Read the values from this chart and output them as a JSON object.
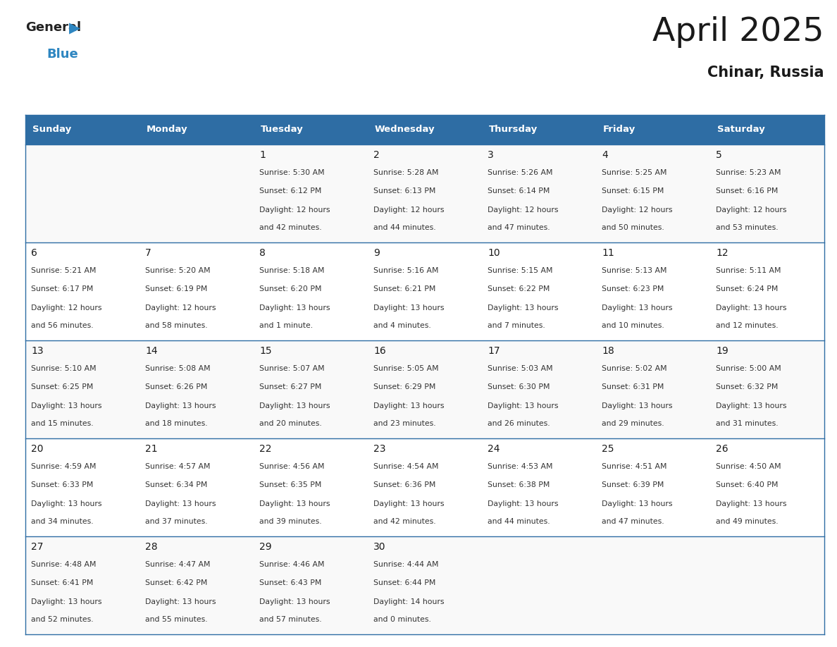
{
  "title": "April 2025",
  "subtitle": "Chinar, Russia",
  "header_bg": "#2E6DA4",
  "header_text_color": "#FFFFFF",
  "border_color": "#2E6DA4",
  "day_names": [
    "Sunday",
    "Monday",
    "Tuesday",
    "Wednesday",
    "Thursday",
    "Friday",
    "Saturday"
  ],
  "title_color": "#1a1a1a",
  "subtitle_color": "#1a1a1a",
  "number_color": "#1a1a1a",
  "text_color": "#333333",
  "logo_general_color": "#222222",
  "logo_blue_color": "#2E86C1",
  "weeks": [
    [
      {
        "day": null,
        "sunrise": null,
        "sunset": null,
        "daylight_h": null,
        "daylight_m": null
      },
      {
        "day": null,
        "sunrise": null,
        "sunset": null,
        "daylight_h": null,
        "daylight_m": null
      },
      {
        "day": 1,
        "sunrise": "5:30 AM",
        "sunset": "6:12 PM",
        "daylight_h": "12 hours",
        "daylight_m": "42 minutes."
      },
      {
        "day": 2,
        "sunrise": "5:28 AM",
        "sunset": "6:13 PM",
        "daylight_h": "12 hours",
        "daylight_m": "44 minutes."
      },
      {
        "day": 3,
        "sunrise": "5:26 AM",
        "sunset": "6:14 PM",
        "daylight_h": "12 hours",
        "daylight_m": "47 minutes."
      },
      {
        "day": 4,
        "sunrise": "5:25 AM",
        "sunset": "6:15 PM",
        "daylight_h": "12 hours",
        "daylight_m": "50 minutes."
      },
      {
        "day": 5,
        "sunrise": "5:23 AM",
        "sunset": "6:16 PM",
        "daylight_h": "12 hours",
        "daylight_m": "53 minutes."
      }
    ],
    [
      {
        "day": 6,
        "sunrise": "5:21 AM",
        "sunset": "6:17 PM",
        "daylight_h": "12 hours",
        "daylight_m": "56 minutes."
      },
      {
        "day": 7,
        "sunrise": "5:20 AM",
        "sunset": "6:19 PM",
        "daylight_h": "12 hours",
        "daylight_m": "58 minutes."
      },
      {
        "day": 8,
        "sunrise": "5:18 AM",
        "sunset": "6:20 PM",
        "daylight_h": "13 hours",
        "daylight_m": "1 minute."
      },
      {
        "day": 9,
        "sunrise": "5:16 AM",
        "sunset": "6:21 PM",
        "daylight_h": "13 hours",
        "daylight_m": "4 minutes."
      },
      {
        "day": 10,
        "sunrise": "5:15 AM",
        "sunset": "6:22 PM",
        "daylight_h": "13 hours",
        "daylight_m": "7 minutes."
      },
      {
        "day": 11,
        "sunrise": "5:13 AM",
        "sunset": "6:23 PM",
        "daylight_h": "13 hours",
        "daylight_m": "10 minutes."
      },
      {
        "day": 12,
        "sunrise": "5:11 AM",
        "sunset": "6:24 PM",
        "daylight_h": "13 hours",
        "daylight_m": "12 minutes."
      }
    ],
    [
      {
        "day": 13,
        "sunrise": "5:10 AM",
        "sunset": "6:25 PM",
        "daylight_h": "13 hours",
        "daylight_m": "15 minutes."
      },
      {
        "day": 14,
        "sunrise": "5:08 AM",
        "sunset": "6:26 PM",
        "daylight_h": "13 hours",
        "daylight_m": "18 minutes."
      },
      {
        "day": 15,
        "sunrise": "5:07 AM",
        "sunset": "6:27 PM",
        "daylight_h": "13 hours",
        "daylight_m": "20 minutes."
      },
      {
        "day": 16,
        "sunrise": "5:05 AM",
        "sunset": "6:29 PM",
        "daylight_h": "13 hours",
        "daylight_m": "23 minutes."
      },
      {
        "day": 17,
        "sunrise": "5:03 AM",
        "sunset": "6:30 PM",
        "daylight_h": "13 hours",
        "daylight_m": "26 minutes."
      },
      {
        "day": 18,
        "sunrise": "5:02 AM",
        "sunset": "6:31 PM",
        "daylight_h": "13 hours",
        "daylight_m": "29 minutes."
      },
      {
        "day": 19,
        "sunrise": "5:00 AM",
        "sunset": "6:32 PM",
        "daylight_h": "13 hours",
        "daylight_m": "31 minutes."
      }
    ],
    [
      {
        "day": 20,
        "sunrise": "4:59 AM",
        "sunset": "6:33 PM",
        "daylight_h": "13 hours",
        "daylight_m": "34 minutes."
      },
      {
        "day": 21,
        "sunrise": "4:57 AM",
        "sunset": "6:34 PM",
        "daylight_h": "13 hours",
        "daylight_m": "37 minutes."
      },
      {
        "day": 22,
        "sunrise": "4:56 AM",
        "sunset": "6:35 PM",
        "daylight_h": "13 hours",
        "daylight_m": "39 minutes."
      },
      {
        "day": 23,
        "sunrise": "4:54 AM",
        "sunset": "6:36 PM",
        "daylight_h": "13 hours",
        "daylight_m": "42 minutes."
      },
      {
        "day": 24,
        "sunrise": "4:53 AM",
        "sunset": "6:38 PM",
        "daylight_h": "13 hours",
        "daylight_m": "44 minutes."
      },
      {
        "day": 25,
        "sunrise": "4:51 AM",
        "sunset": "6:39 PM",
        "daylight_h": "13 hours",
        "daylight_m": "47 minutes."
      },
      {
        "day": 26,
        "sunrise": "4:50 AM",
        "sunset": "6:40 PM",
        "daylight_h": "13 hours",
        "daylight_m": "49 minutes."
      }
    ],
    [
      {
        "day": 27,
        "sunrise": "4:48 AM",
        "sunset": "6:41 PM",
        "daylight_h": "13 hours",
        "daylight_m": "52 minutes."
      },
      {
        "day": 28,
        "sunrise": "4:47 AM",
        "sunset": "6:42 PM",
        "daylight_h": "13 hours",
        "daylight_m": "55 minutes."
      },
      {
        "day": 29,
        "sunrise": "4:46 AM",
        "sunset": "6:43 PM",
        "daylight_h": "13 hours",
        "daylight_m": "57 minutes."
      },
      {
        "day": 30,
        "sunrise": "4:44 AM",
        "sunset": "6:44 PM",
        "daylight_h": "14 hours",
        "daylight_m": "0 minutes."
      },
      {
        "day": null,
        "sunrise": null,
        "sunset": null,
        "daylight_h": null,
        "daylight_m": null
      },
      {
        "day": null,
        "sunrise": null,
        "sunset": null,
        "daylight_h": null,
        "daylight_m": null
      },
      {
        "day": null,
        "sunrise": null,
        "sunset": null,
        "daylight_h": null,
        "daylight_m": null
      }
    ]
  ]
}
